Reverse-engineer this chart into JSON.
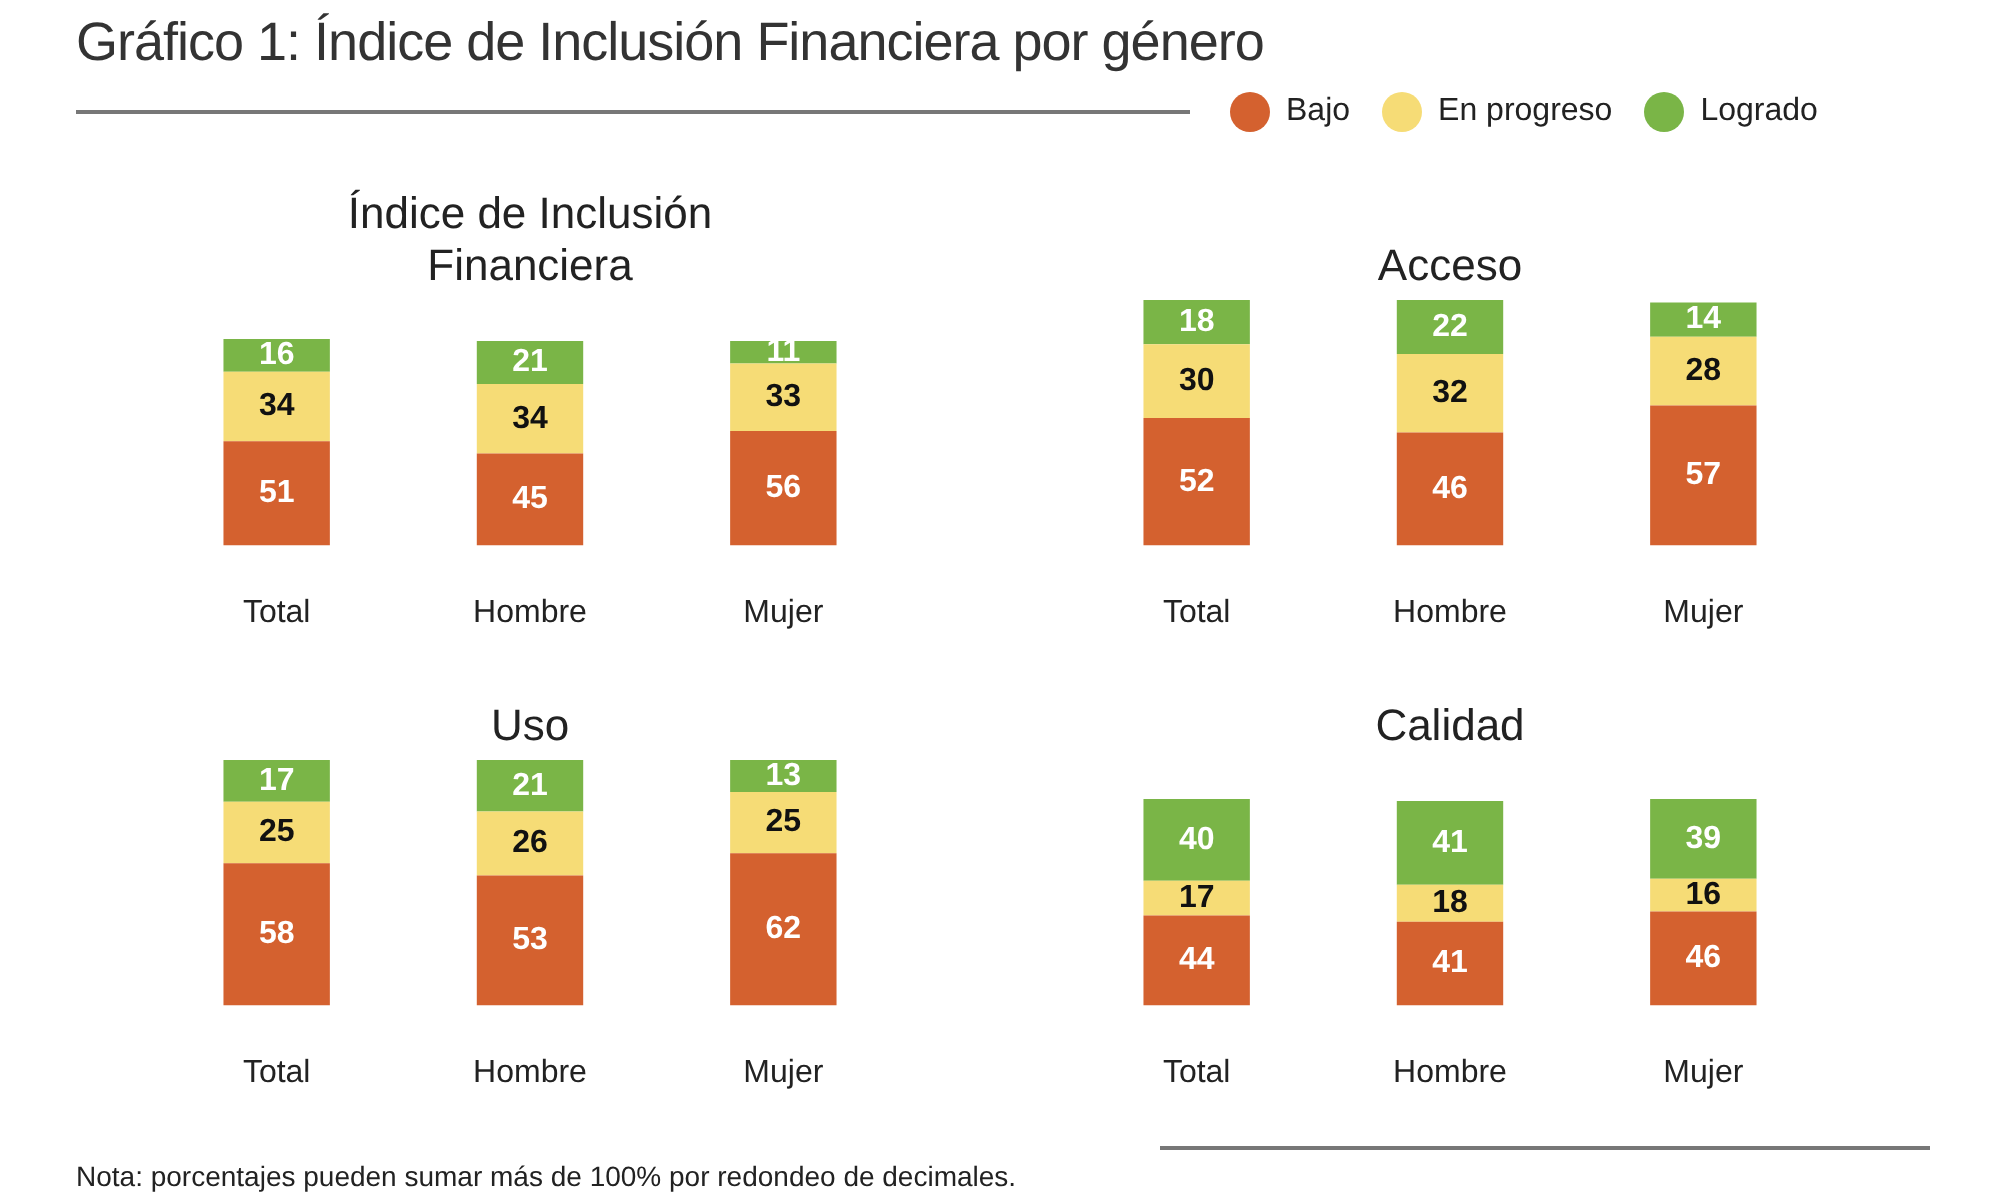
{
  "chart_data": [
    {
      "type": "other",
      "title": "Gráfico 1: Índice de Inclusión Financiera por género",
      "annotations": [
        "Nota: porcentajes pueden sumar más de 100% por redondeo de decimales."
      ]
    },
    {
      "type": "bar",
      "title": "Índice de Inclusión Financiera",
      "categories": [
        "Total",
        "Hombre",
        "Mujer"
      ],
      "stacked": true,
      "data_labels": true,
      "legend": "top right",
      "series": [
        {
          "name": "Bajo",
          "color": "#d4612f",
          "values": [
            51,
            45,
            56
          ]
        },
        {
          "name": "En progreso",
          "color": "#f6dc76",
          "values": [
            34,
            34,
            33
          ]
        },
        {
          "name": "Logrado",
          "color": "#7ab547",
          "values": [
            16,
            21,
            11
          ]
        }
      ]
    },
    {
      "type": "bar",
      "title": "Acceso",
      "categories": [
        "Total",
        "Hombre",
        "Mujer"
      ],
      "stacked": true,
      "data_labels": true,
      "series": [
        {
          "color": "#d4612f",
          "values": [
            52,
            46,
            57
          ]
        },
        {
          "color": "#f6dc76",
          "values": [
            30,
            32,
            28
          ]
        },
        {
          "color": "#7ab547",
          "values": [
            18,
            22,
            14
          ]
        }
      ]
    },
    {
      "type": "bar",
      "title": "Uso",
      "categories": [
        "Total",
        "Hombre",
        "Mujer"
      ],
      "stacked": true,
      "data_labels": true,
      "series": [
        {
          "color": "#d4612f",
          "values": [
            58,
            53,
            62
          ]
        },
        {
          "color": "#f6dc76",
          "values": [
            25,
            26,
            25
          ]
        },
        {
          "color": "#7ab547",
          "values": [
            17,
            21,
            13
          ]
        }
      ]
    },
    {
      "type": "bar",
      "title": "Calidad",
      "categories": [
        "Total",
        "Hombre",
        "Mujer"
      ],
      "stacked": true,
      "data_labels": true,
      "series": [
        {
          "color": "#d4612f",
          "values": [
            44,
            41,
            46
          ]
        },
        {
          "color": "#f6dc76",
          "values": [
            17,
            18,
            16
          ]
        },
        {
          "color": "#7ab547",
          "values": [
            40,
            41,
            39
          ]
        }
      ]
    }
  ]
}
